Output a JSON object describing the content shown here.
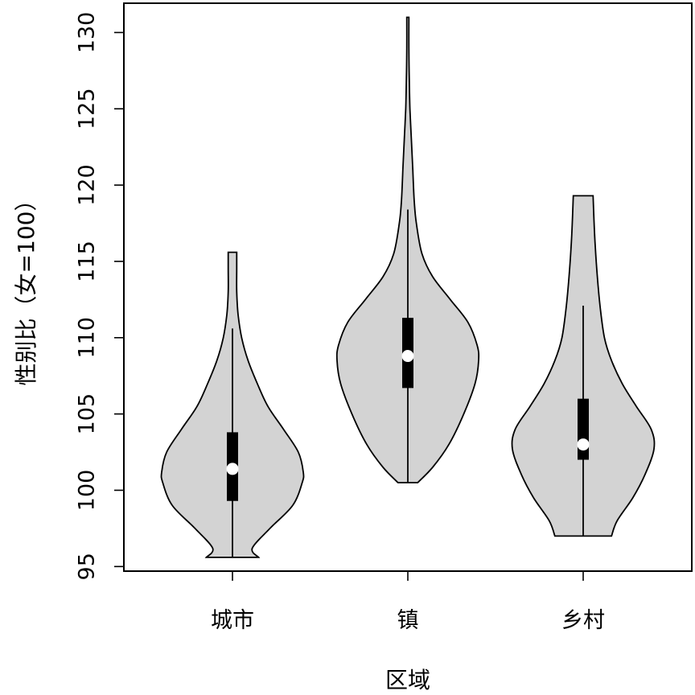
{
  "chart_data": {
    "type": "violin",
    "xlabel": "区域",
    "ylabel": "性别比（女=100）",
    "ylim": [
      94.5,
      132.4
    ],
    "yticks": [
      95,
      100,
      105,
      110,
      115,
      120,
      125,
      130
    ],
    "grid": false,
    "fill_color": "#d3d3d3",
    "stroke_color": "#000000",
    "median_color": "#ffffff",
    "groups": [
      {
        "category": "城市",
        "min": 95.6,
        "q1": 99.3,
        "median": 101.4,
        "q3": 103.8,
        "max": 115.6,
        "whisker_low": 95.6,
        "whisker_high": 110.6,
        "density": [
          [
            95.6,
            0.37
          ],
          [
            96.2,
            0.28
          ],
          [
            97.5,
            0.53
          ],
          [
            99,
            0.85
          ],
          [
            100.5,
            0.985
          ],
          [
            101.2,
            1.0
          ],
          [
            102.5,
            0.93
          ],
          [
            104,
            0.72
          ],
          [
            105.5,
            0.5
          ],
          [
            107,
            0.35
          ],
          [
            108.5,
            0.22
          ],
          [
            110,
            0.13
          ],
          [
            111.5,
            0.08
          ],
          [
            113,
            0.06
          ],
          [
            114.5,
            0.06
          ],
          [
            115.6,
            0.06
          ]
        ]
      },
      {
        "category": "镇",
        "min": 100.5,
        "q1": 106.7,
        "median": 108.8,
        "q3": 111.3,
        "max": 131.0,
        "whisker_low": 100.5,
        "whisker_high": 118.4,
        "density": [
          [
            100.5,
            0.14
          ],
          [
            101.5,
            0.35
          ],
          [
            103,
            0.58
          ],
          [
            105,
            0.79
          ],
          [
            107,
            0.95
          ],
          [
            108.5,
            1.0
          ],
          [
            109.5,
            0.98
          ],
          [
            111,
            0.85
          ],
          [
            112.5,
            0.6
          ],
          [
            114,
            0.35
          ],
          [
            115.5,
            0.2
          ],
          [
            117.5,
            0.12
          ],
          [
            119,
            0.09
          ],
          [
            121,
            0.07
          ],
          [
            123,
            0.05
          ],
          [
            125,
            0.03
          ],
          [
            127,
            0.02
          ],
          [
            129,
            0.015
          ],
          [
            131,
            0.015
          ]
        ]
      },
      {
        "category": "乡村",
        "min": 97.0,
        "q1": 102.0,
        "median": 103.0,
        "q3": 106.0,
        "max": 119.3,
        "whisker_low": 97.0,
        "whisker_high": 112.1,
        "density": [
          [
            97,
            0.4
          ],
          [
            98,
            0.48
          ],
          [
            99.5,
            0.7
          ],
          [
            101,
            0.87
          ],
          [
            102.7,
            1.0
          ],
          [
            104,
            0.96
          ],
          [
            105.5,
            0.75
          ],
          [
            107,
            0.55
          ],
          [
            108.5,
            0.4
          ],
          [
            110,
            0.3
          ],
          [
            112,
            0.24
          ],
          [
            114,
            0.2
          ],
          [
            116,
            0.17
          ],
          [
            118,
            0.15
          ],
          [
            119.3,
            0.14
          ]
        ]
      }
    ]
  }
}
